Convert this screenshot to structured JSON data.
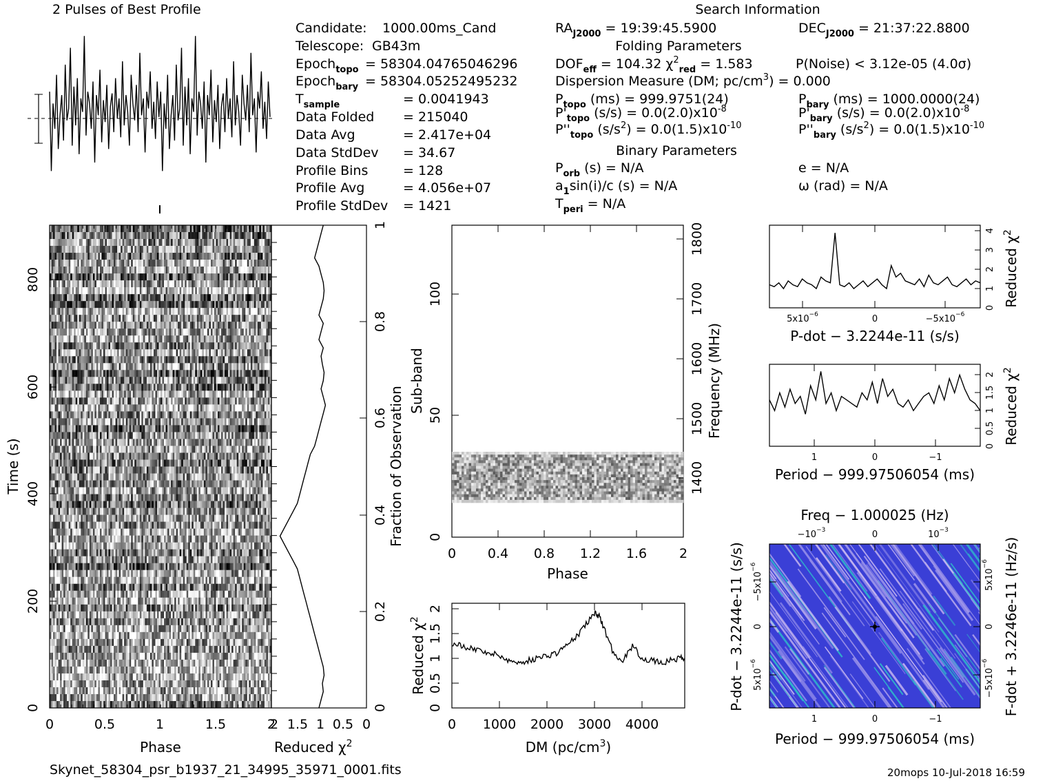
{
  "header": {
    "profile_title": "2 Pulses of Best Profile",
    "search_title": "Search Information",
    "footer_file": "Skynet_58304_psr_b1937_21_34995_35971_0001.fits",
    "footer_stamp": "20mops 10-Jul-2018 16:59"
  },
  "info_left": [
    {
      "label": "Candidate:",
      "value": "1000.00ms_Cand"
    },
    {
      "label": "Telescope:",
      "value": "GB43m"
    },
    {
      "label": "Epoch",
      "sub": "topo",
      "value": "= 58304.04765046296"
    },
    {
      "label": "Epoch",
      "sub": "bary",
      "value": "= 58304.05252495232"
    },
    {
      "label": "T",
      "sub": "sample",
      "value": "=   0.0041943"
    },
    {
      "label": "Data Folded",
      "value": "=   215040"
    },
    {
      "label": "Data Avg",
      "value": "=   2.417e+04"
    },
    {
      "label": "Data StdDev",
      "value": "=   34.67"
    },
    {
      "label": "Profile Bins",
      "value": "=   128"
    },
    {
      "label": "Profile Avg",
      "value": "=   4.056e+07"
    },
    {
      "label": "Profile StdDev",
      "value": "=   1421"
    }
  ],
  "info_right": {
    "ra": "RA",
    "ra_sub": "J2000",
    "ra_value": "= 19:39:45.5900",
    "dec": "DEC",
    "dec_sub": "J2000",
    "dec_value": "= 21:37:22.8800",
    "folding_title": "Folding Parameters",
    "dof": "DOF",
    "dof_sub": "eff",
    "dof_value": "= 104.32",
    "chi": "χ",
    "chi_sup": "2",
    "chi_sub": "red",
    "chi_value": "= 1.583",
    "pnoise": "P(Noise) < 3.12e-05  (4.0σ)",
    "dm_line": "Dispersion Measure (DM; pc/cm",
    "dm_sup": "3",
    "dm_end": ") = 0.000",
    "ptopo": "P",
    "ptopo_sub": "topo",
    "ptopo_value": "(ms) =  999.9751(24)",
    "pbary": "P",
    "pbary_sub": "bary",
    "pbary_value": "(ms) =  1000.0000(24)",
    "pdtopo": "P'",
    "pdtopo_sub": "topo",
    "pdtopo_value": "(s/s) = 0.0(2.0)x10",
    "pdtopo_exp": "-8",
    "pdbary": "P'",
    "pdbary_sub": "bary",
    "pdbary_value": "(s/s) = 0.0(2.0)x10",
    "pdbary_exp": "-8",
    "pddtopo": "P''",
    "pddtopo_sub": "topo",
    "pddtopo_value": "(s/s",
    "pddtopo_sup": "2",
    "pddtopo_end": ") = 0.0(1.5)x10",
    "pddtopo_exp": "-10",
    "pddbary": "P''",
    "pddbary_sub": "bary",
    "pddbary_value": "(s/s",
    "pddbary_sup": "2",
    "pddbary_end": ") = 0.0(1.5)x10",
    "pddbary_exp": "-10",
    "binary_title": "Binary Parameters",
    "porb": "P",
    "porb_sub": "orb",
    "porb_value": "(s) = N/A",
    "ecc": "e = N/A",
    "asini": "a",
    "asini_sub": "1",
    "asini_value": "sin(i)/c (s) = N/A",
    "omega": "ω (rad) = N/A",
    "tperi": "T",
    "tperi_sub": "peri",
    "tperi_value": "= N/A"
  },
  "chart_data": [
    {
      "id": "profile",
      "type": "line",
      "title": "2 Pulses of Best Profile",
      "x_range": [
        0,
        2
      ],
      "values": [
        0.62,
        0.15,
        0.55,
        0.4,
        0.72,
        0.28,
        0.48,
        0.6,
        0.33,
        0.78,
        0.45,
        0.52,
        0.88,
        0.3,
        0.65,
        0.42,
        0.7,
        0.25,
        0.58,
        0.5,
        0.95,
        0.36,
        0.62,
        0.55,
        0.4,
        0.68,
        0.2,
        0.6,
        0.48,
        0.75,
        0.32,
        0.57,
        0.44,
        0.66,
        0.28,
        0.53,
        0.61,
        0.38,
        0.7,
        0.46,
        0.58,
        0.35,
        0.8,
        0.42,
        0.6,
        0.5,
        0.3,
        0.72,
        0.55,
        0.45,
        0.66,
        0.38,
        0.85,
        0.48,
        0.58,
        0.26,
        0.62,
        0.52,
        0.74,
        0.4,
        0.56,
        0.34,
        0.68,
        0.47,
        0.62,
        0.15,
        0.55,
        0.4,
        0.72,
        0.28,
        0.48,
        0.6,
        0.33,
        0.78,
        0.45,
        0.52,
        0.88,
        0.3,
        0.65,
        0.42,
        0.7,
        0.25,
        0.58,
        0.5,
        0.95,
        0.36,
        0.62,
        0.55,
        0.4,
        0.68,
        0.2,
        0.6,
        0.48,
        0.75,
        0.32,
        0.57,
        0.44,
        0.66,
        0.28,
        0.53,
        0.61,
        0.38,
        0.7,
        0.46,
        0.58,
        0.35,
        0.8,
        0.42,
        0.6,
        0.5,
        0.3,
        0.72,
        0.55,
        0.45,
        0.66,
        0.38,
        0.85,
        0.48,
        0.58,
        0.26,
        0.62,
        0.52,
        0.74,
        0.4,
        0.56,
        0.34,
        0.68,
        0.47
      ]
    },
    {
      "id": "time_phase",
      "type": "heatmap",
      "xlabel": "Phase",
      "ylabel": "Time (s)",
      "x_range": [
        0,
        2
      ],
      "y_range": [
        0,
        900
      ],
      "x_ticks": [
        "0",
        "0.5",
        "1",
        "1.5",
        "2"
      ],
      "y_ticks": [
        "0",
        "200",
        "400",
        "600",
        "800"
      ],
      "right_label": "Fraction of Observation",
      "right_ticks": [
        "0",
        "0.2",
        "0.4",
        "0.6",
        "0.8",
        "1"
      ]
    },
    {
      "id": "redchi_time",
      "type": "line",
      "xlabel": "Reduced χ2",
      "x_ticks": [
        "2",
        "1.5",
        "1",
        "0.5",
        "0"
      ],
      "values": [
        1.1,
        1.05,
        1.0,
        1.02,
        0.98,
        1.0,
        1.05,
        1.1,
        1.15,
        1.2,
        1.25,
        1.3,
        1.35,
        1.4,
        1.45,
        1.5,
        1.55,
        1.6,
        1.7,
        1.8,
        1.9,
        2.0,
        1.9,
        1.8,
        1.7,
        1.6,
        1.55,
        1.5,
        1.45,
        1.4,
        1.35,
        1.3,
        1.2,
        1.15,
        1.1,
        1.05,
        1.0,
        0.95,
        1.0,
        1.05,
        1.0,
        0.98,
        1.02,
        1.05,
        1.0,
        1.1,
        1.05,
        1.0,
        1.1,
        1.05,
        1.0,
        0.98,
        1.0,
        1.05,
        1.1,
        1.2,
        1.15,
        1.1,
        1.05,
        1.0
      ]
    },
    {
      "id": "subband_phase",
      "type": "heatmap",
      "xlabel": "Phase",
      "ylabel": "Sub-band",
      "x_ticks": [
        "0",
        "0.4",
        "0.8",
        "1.2",
        "1.6",
        "2"
      ],
      "y_ticks": [
        "0",
        "50",
        "100"
      ],
      "right_label": "Frequency (MHz)",
      "right_ticks": [
        "1400",
        "1500",
        "1600",
        "1700",
        "1800"
      ],
      "band_range": [
        15,
        35
      ]
    },
    {
      "id": "dm_chi",
      "type": "line",
      "xlabel": "DM (pc/cm3)",
      "xlabel_main": "DM (pc/cm",
      "xlabel_sup": "3",
      "xlabel_end": ")",
      "ylabel": "Reduced χ2",
      "x_ticks": [
        "0",
        "1000",
        "2000",
        "3000",
        "4000"
      ],
      "y_ticks": [
        "0",
        "0.5",
        "1",
        "1.5",
        "2"
      ],
      "x": [
        0,
        200,
        400,
        600,
        800,
        1000,
        1200,
        1400,
        1600,
        1800,
        2000,
        2200,
        2400,
        2600,
        2800,
        3000,
        3100,
        3200,
        3400,
        3600,
        3800,
        4000,
        4200,
        4400,
        4600,
        4800,
        4900
      ],
      "values": [
        1.3,
        1.25,
        1.2,
        1.15,
        1.1,
        1.05,
        0.95,
        0.9,
        0.95,
        1.0,
        1.05,
        1.1,
        1.25,
        1.4,
        1.65,
        1.9,
        1.85,
        1.6,
        1.1,
        0.95,
        1.25,
        1.0,
        0.95,
        0.9,
        0.95,
        1.0,
        1.0
      ]
    },
    {
      "id": "pdot_chi",
      "type": "line",
      "xlabel": "P-dot − 3.2244e-11 (s/s)",
      "ylabel": "Reduced χ2",
      "y_ticks": [
        "0",
        "1",
        "2",
        "3",
        "4"
      ],
      "values": [
        1.2,
        1.1,
        1.3,
        1.0,
        1.4,
        1.2,
        1.1,
        1.5,
        1.3,
        1.2,
        1.0,
        1.6,
        1.4,
        1.3,
        3.9,
        1.2,
        1.1,
        1.3,
        1.0,
        1.2,
        1.4,
        1.1,
        1.3,
        1.5,
        1.2,
        1.0,
        2.2,
        1.6,
        1.8,
        1.4,
        1.3,
        1.2,
        1.5,
        1.1,
        1.7,
        1.3,
        1.2,
        1.4,
        1.6,
        1.2,
        1.1,
        1.3,
        1.5,
        1.2,
        1.4,
        1.3
      ]
    },
    {
      "id": "period_chi",
      "type": "line",
      "xlabel": "Period − 999.97506054 (ms)",
      "ylabel": "Reduced χ2",
      "x_ticks": [
        "1",
        "0",
        "−1"
      ],
      "y_ticks": [
        "0",
        "0.5",
        "1",
        "1.5",
        "2"
      ],
      "values": [
        1.3,
        1.0,
        1.5,
        1.1,
        1.6,
        1.2,
        1.4,
        0.9,
        1.7,
        1.3,
        2.1,
        1.2,
        1.5,
        1.0,
        1.4,
        1.3,
        1.2,
        1.1,
        1.5,
        1.3,
        1.8,
        1.2,
        1.9,
        1.4,
        1.6,
        1.2,
        1.1,
        1.3,
        1.0,
        1.2,
        1.4,
        1.5,
        1.2,
        1.7,
        1.3,
        1.9,
        1.5,
        2.0,
        1.6,
        1.3,
        1.2,
        1.0
      ]
    },
    {
      "id": "pp_plane",
      "type": "heatmap",
      "xlabel": "Period − 999.97506054 (ms)",
      "ylabel": "P-dot − 3.2244e-11 (s/s)",
      "top_label": "Freq − 1.000025 (Hz)",
      "right_label": "F-dot + 3.2246e-11 (Hz/s)",
      "x_ticks": [
        "1",
        "0",
        "−1"
      ],
      "top_ticks": [
        "−10",
        "0",
        "10"
      ],
      "top_exp": "−3",
      "colors": [
        "#3a3fd6",
        "#8f89e8",
        "#c9b9f0",
        "#2fb7c9"
      ]
    }
  ]
}
